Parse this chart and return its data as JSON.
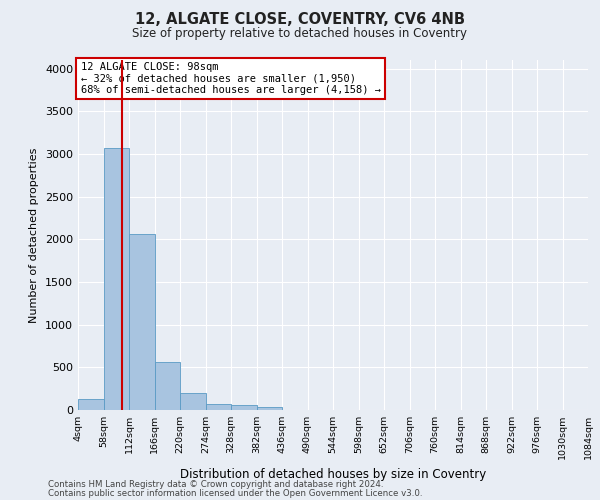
{
  "title": "12, ALGATE CLOSE, COVENTRY, CV6 4NB",
  "subtitle": "Size of property relative to detached houses in Coventry",
  "xlabel": "Distribution of detached houses by size in Coventry",
  "ylabel": "Number of detached properties",
  "bar_color": "#a8c4e0",
  "bar_edge_color": "#5a9ac5",
  "background_color": "#e8edf4",
  "grid_color": "#ffffff",
  "vline_x": 98,
  "vline_color": "#cc0000",
  "bin_edges": [
    4,
    58,
    112,
    166,
    220,
    274,
    328,
    382,
    436,
    490,
    544,
    598,
    652,
    706,
    760,
    814,
    868,
    922,
    976,
    1030,
    1084
  ],
  "bar_heights": [
    130,
    3065,
    2060,
    565,
    195,
    75,
    55,
    30,
    0,
    0,
    0,
    0,
    0,
    0,
    0,
    0,
    0,
    0,
    0,
    0
  ],
  "annotation_text": "12 ALGATE CLOSE: 98sqm\n← 32% of detached houses are smaller (1,950)\n68% of semi-detached houses are larger (4,158) →",
  "annotation_box_color": "#ffffff",
  "annotation_box_edge_color": "#cc0000",
  "footnote1": "Contains HM Land Registry data © Crown copyright and database right 2024.",
  "footnote2": "Contains public sector information licensed under the Open Government Licence v3.0.",
  "ylim": [
    0,
    4100
  ],
  "yticks": [
    0,
    500,
    1000,
    1500,
    2000,
    2500,
    3000,
    3500,
    4000
  ]
}
